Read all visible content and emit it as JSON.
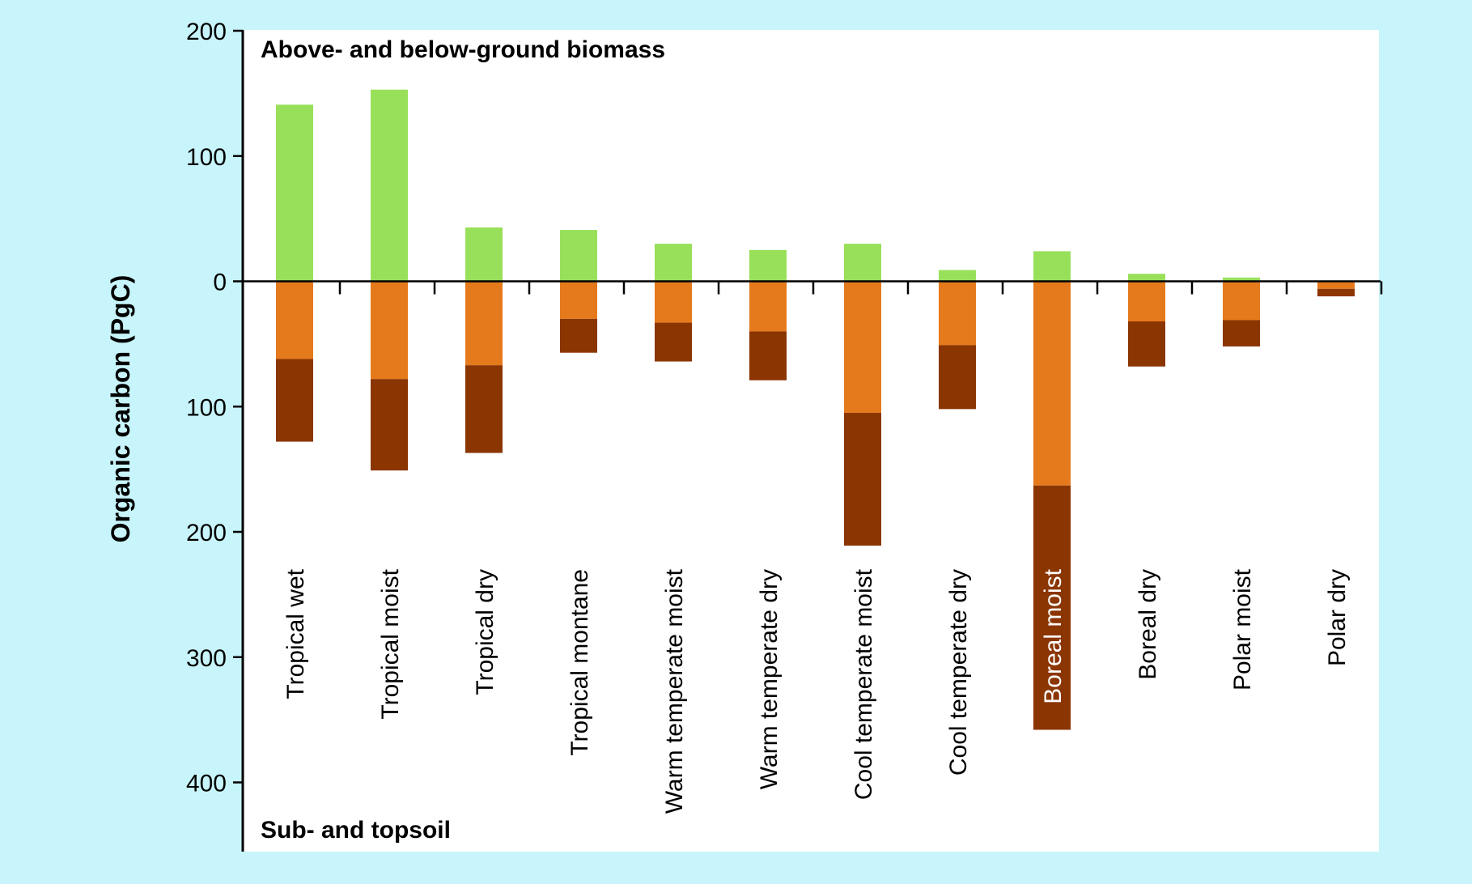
{
  "chart_data": {
    "type": "bar",
    "ylabel": "Organic carbon (PgC)",
    "top_annotation": "Above- and below-ground biomass",
    "bottom_annotation": "Sub- and topsoil",
    "yticks": [
      {
        "value": 200,
        "label": "200"
      },
      {
        "value": 100,
        "label": "100"
      },
      {
        "value": 0,
        "label": "0"
      },
      {
        "value": -100,
        "label": "100"
      },
      {
        "value": -200,
        "label": "200"
      },
      {
        "value": -300,
        "label": "300"
      },
      {
        "value": -400,
        "label": "400"
      }
    ],
    "ylim": [
      -455,
      200
    ],
    "grid": false,
    "legend": "none",
    "colors": {
      "biomass": "#98e05a",
      "topsoil": "#e57a1c",
      "subsoil": "#8b3500",
      "axis": "#000000",
      "plot_background": "#ffffff",
      "page_background": "#c8f5fb"
    },
    "categories": [
      "Tropical wet",
      "Tropical moist",
      "Tropical dry",
      "Tropical montane",
      "Warm temperate moist",
      "Warm temperate dry",
      "Cool temperate moist",
      "Cool temperate dry",
      "Boreal moist",
      "Boreal dry",
      "Polar moist",
      "Polar dry"
    ],
    "highlighted_category": "Boreal moist",
    "series": [
      {
        "values": [
          141,
          153,
          43,
          41,
          30,
          25,
          30,
          9,
          24,
          6,
          3,
          0
        ]
      },
      {
        "values": [
          62,
          78,
          67,
          30,
          33,
          40,
          105,
          51,
          163,
          32,
          31,
          6
        ]
      },
      {
        "values": [
          66,
          73,
          70,
          27,
          31,
          39,
          106,
          51,
          195,
          36,
          21,
          6
        ]
      }
    ]
  }
}
